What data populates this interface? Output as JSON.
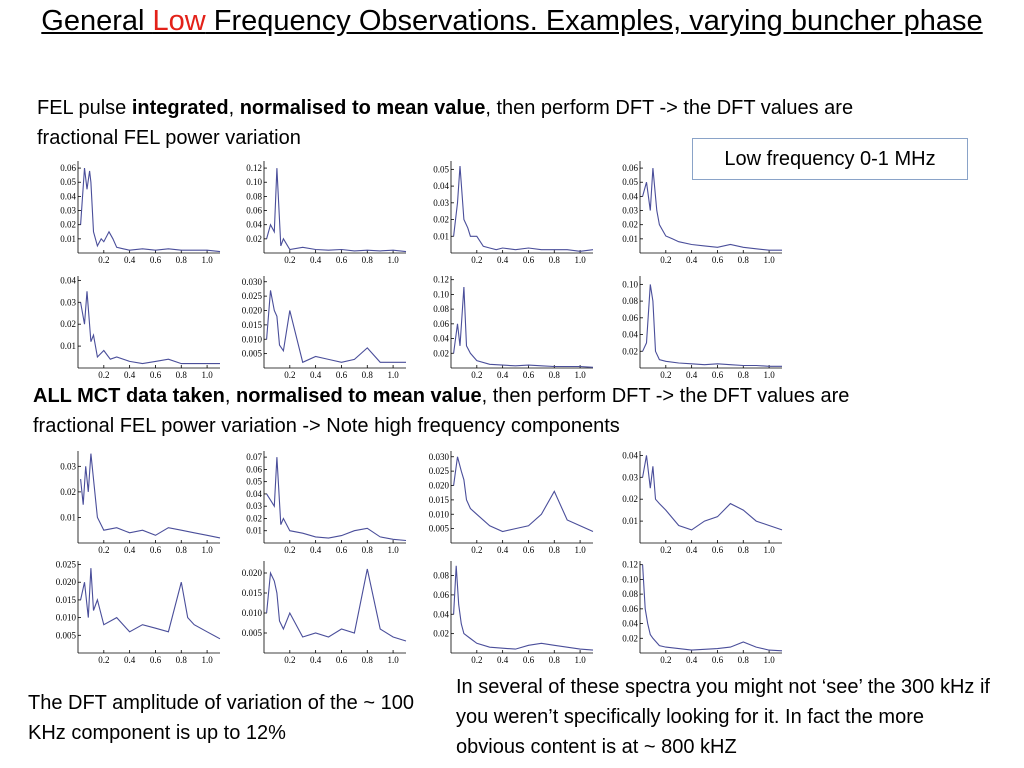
{
  "title": {
    "before": "General ",
    "accent": "Low",
    "after": " Frequency Observations. Examples, varying buncher phase",
    "accent_color": "#e32119"
  },
  "para1": {
    "t1": "FEL pulse ",
    "b1": "integrated",
    "t2": ", ",
    "b2": "normalised to mean value",
    "t3": ", then perform DFT -> the DFT values are fractional FEL power variation"
  },
  "box_label": "Low  frequency 0-1 MHz",
  "para2": {
    "b1": "ALL MCT data taken",
    "t1": ", ",
    "b2": "normalised to mean value",
    "t2": ", then perform DFT -> the DFT values are fractional FEL power variation -> Note high frequency components"
  },
  "note_left": "The DFT amplitude of variation of the ~ 100 KHz component is up to 12%",
  "note_right": "In several of these spectra you might not ‘see’ the 300 kHz if you weren’t specifically looking for it. In fact the more obvious  content is at ~ 800 kHZ",
  "colors": {
    "trace": "#4a4e9a",
    "box_border": "#8aa3c8"
  },
  "chart_data": [
    {
      "type": "line",
      "x": [
        0.02,
        0.05,
        0.07,
        0.09,
        0.1,
        0.12,
        0.15,
        0.18,
        0.2,
        0.24,
        0.27,
        0.3,
        0.35,
        0.4,
        0.5,
        0.6,
        0.7,
        0.8,
        0.9,
        1.0,
        1.1
      ],
      "y": [
        0.02,
        0.06,
        0.045,
        0.058,
        0.05,
        0.015,
        0.005,
        0.01,
        0.008,
        0.015,
        0.01,
        0.004,
        0.003,
        0.002,
        0.003,
        0.002,
        0.003,
        0.002,
        0.002,
        0.002,
        0.001
      ],
      "xticks": [
        "0.2",
        "0.4",
        "0.6",
        "0.8",
        "1.0"
      ],
      "yticks": [
        "0.01",
        "0.02",
        "0.03",
        "0.04",
        "0.05",
        "0.06"
      ],
      "ylim": [
        0,
        0.065
      ],
      "xlim": [
        0,
        1.1
      ]
    },
    {
      "type": "line",
      "x": [
        0.02,
        0.05,
        0.08,
        0.1,
        0.13,
        0.15,
        0.2,
        0.3,
        0.4,
        0.5,
        0.6,
        0.7,
        0.8,
        0.9,
        1.0,
        1.1
      ],
      "y": [
        0.02,
        0.04,
        0.03,
        0.12,
        0.01,
        0.02,
        0.005,
        0.008,
        0.005,
        0.004,
        0.005,
        0.003,
        0.004,
        0.003,
        0.004,
        0.002
      ],
      "xticks": [
        "0.2",
        "0.4",
        "0.6",
        "0.8",
        "1.0"
      ],
      "yticks": [
        "0.02",
        "0.04",
        "0.06",
        "0.08",
        "0.10",
        "0.12"
      ],
      "ylim": [
        0,
        0.13
      ],
      "xlim": [
        0,
        1.1
      ]
    },
    {
      "type": "line",
      "x": [
        0.02,
        0.05,
        0.07,
        0.1,
        0.13,
        0.15,
        0.2,
        0.25,
        0.3,
        0.35,
        0.4,
        0.5,
        0.6,
        0.7,
        0.8,
        0.9,
        1.0,
        1.1
      ],
      "y": [
        0.01,
        0.03,
        0.052,
        0.02,
        0.015,
        0.01,
        0.01,
        0.004,
        0.003,
        0.002,
        0.003,
        0.002,
        0.003,
        0.002,
        0.002,
        0.002,
        0.001,
        0.002
      ],
      "xticks": [
        "0.2",
        "0.4",
        "0.6",
        "0.8",
        "1.0"
      ],
      "yticks": [
        "0.01",
        "0.02",
        "0.03",
        "0.04",
        "0.05"
      ],
      "ylim": [
        0,
        0.055
      ],
      "xlim": [
        0,
        1.1
      ]
    },
    {
      "type": "line",
      "x": [
        0.02,
        0.05,
        0.08,
        0.1,
        0.13,
        0.15,
        0.2,
        0.25,
        0.3,
        0.4,
        0.5,
        0.6,
        0.7,
        0.8,
        0.9,
        1.0,
        1.1
      ],
      "y": [
        0.04,
        0.05,
        0.03,
        0.06,
        0.03,
        0.02,
        0.012,
        0.01,
        0.008,
        0.006,
        0.005,
        0.004,
        0.006,
        0.004,
        0.003,
        0.002,
        0.002
      ],
      "xticks": [
        "0.2",
        "0.4",
        "0.6",
        "0.8",
        "1.0"
      ],
      "yticks": [
        "0.01",
        "0.02",
        "0.03",
        "0.04",
        "0.05",
        "0.06"
      ],
      "ylim": [
        0,
        0.065
      ],
      "xlim": [
        0,
        1.1
      ]
    },
    {
      "type": "line",
      "x": [
        0.02,
        0.05,
        0.07,
        0.1,
        0.12,
        0.15,
        0.2,
        0.25,
        0.3,
        0.4,
        0.5,
        0.6,
        0.7,
        0.8,
        0.9,
        1.0,
        1.1
      ],
      "y": [
        0.03,
        0.02,
        0.035,
        0.012,
        0.015,
        0.005,
        0.008,
        0.004,
        0.005,
        0.003,
        0.002,
        0.003,
        0.004,
        0.002,
        0.002,
        0.002,
        0.002
      ],
      "xticks": [
        "0.2",
        "0.4",
        "0.6",
        "0.8",
        "1.0"
      ],
      "yticks": [
        "0.01",
        "0.02",
        "0.03",
        "0.04"
      ],
      "ylim": [
        0,
        0.042
      ],
      "xlim": [
        0,
        1.1
      ]
    },
    {
      "type": "line",
      "x": [
        0.02,
        0.05,
        0.08,
        0.1,
        0.12,
        0.15,
        0.2,
        0.3,
        0.4,
        0.5,
        0.6,
        0.7,
        0.8,
        0.9,
        1.0,
        1.1
      ],
      "y": [
        0.01,
        0.027,
        0.02,
        0.018,
        0.008,
        0.006,
        0.02,
        0.002,
        0.004,
        0.003,
        0.002,
        0.003,
        0.007,
        0.002,
        0.002,
        0.002
      ],
      "xticks": [
        "0.2",
        "0.4",
        "0.6",
        "0.8",
        "1.0"
      ],
      "yticks": [
        "0.005",
        "0.010",
        "0.015",
        "0.020",
        "0.025",
        "0.030"
      ],
      "ylim": [
        0,
        0.032
      ],
      "xlim": [
        0,
        1.1
      ]
    },
    {
      "type": "line",
      "x": [
        0.02,
        0.05,
        0.07,
        0.1,
        0.12,
        0.15,
        0.2,
        0.3,
        0.4,
        0.5,
        0.6,
        0.7,
        0.8,
        0.9,
        1.0,
        1.1
      ],
      "y": [
        0.02,
        0.06,
        0.03,
        0.11,
        0.03,
        0.02,
        0.01,
        0.005,
        0.004,
        0.003,
        0.004,
        0.003,
        0.002,
        0.002,
        0.002,
        0.001
      ],
      "xticks": [
        "0.2",
        "0.4",
        "0.6",
        "0.8",
        "1.0"
      ],
      "yticks": [
        "0.02",
        "0.04",
        "0.06",
        "0.08",
        "0.10",
        "0.12"
      ],
      "ylim": [
        0,
        0.125
      ],
      "xlim": [
        0,
        1.1
      ]
    },
    {
      "type": "line",
      "x": [
        0.02,
        0.05,
        0.08,
        0.1,
        0.12,
        0.15,
        0.2,
        0.3,
        0.4,
        0.5,
        0.6,
        0.7,
        0.8,
        0.9,
        1.0,
        1.1
      ],
      "y": [
        0.02,
        0.03,
        0.1,
        0.08,
        0.02,
        0.01,
        0.008,
        0.006,
        0.005,
        0.004,
        0.005,
        0.004,
        0.003,
        0.003,
        0.002,
        0.002
      ],
      "xticks": [
        "0.2",
        "0.4",
        "0.6",
        "0.8",
        "1.0"
      ],
      "yticks": [
        "0.02",
        "0.04",
        "0.06",
        "0.08",
        "0.10"
      ],
      "ylim": [
        0,
        0.11
      ],
      "xlim": [
        0,
        1.1
      ]
    },
    {
      "type": "line",
      "x": [
        0.02,
        0.04,
        0.06,
        0.08,
        0.1,
        0.15,
        0.2,
        0.3,
        0.4,
        0.5,
        0.6,
        0.7,
        0.8,
        0.9,
        1.0,
        1.1
      ],
      "y": [
        0.025,
        0.015,
        0.03,
        0.02,
        0.035,
        0.01,
        0.005,
        0.006,
        0.004,
        0.005,
        0.003,
        0.006,
        0.005,
        0.004,
        0.003,
        0.002
      ],
      "xticks": [
        "0.2",
        "0.4",
        "0.6",
        "0.8",
        "1.0"
      ],
      "yticks": [
        "0.01",
        "0.02",
        "0.03"
      ],
      "ylim": [
        0,
        0.036
      ],
      "xlim": [
        0,
        1.1
      ]
    },
    {
      "type": "line",
      "x": [
        0.02,
        0.05,
        0.08,
        0.1,
        0.13,
        0.15,
        0.2,
        0.3,
        0.4,
        0.5,
        0.6,
        0.7,
        0.8,
        0.9,
        1.0,
        1.1
      ],
      "y": [
        0.04,
        0.035,
        0.03,
        0.07,
        0.015,
        0.02,
        0.01,
        0.008,
        0.005,
        0.004,
        0.006,
        0.01,
        0.012,
        0.005,
        0.003,
        0.002
      ],
      "xticks": [
        "0.2",
        "0.4",
        "0.6",
        "0.8",
        "1.0"
      ],
      "yticks": [
        "0.01",
        "0.02",
        "0.03",
        "0.04",
        "0.05",
        "0.06",
        "0.07"
      ],
      "ylim": [
        0,
        0.075
      ],
      "xlim": [
        0,
        1.1
      ]
    },
    {
      "type": "line",
      "x": [
        0.02,
        0.05,
        0.08,
        0.1,
        0.12,
        0.15,
        0.2,
        0.3,
        0.4,
        0.5,
        0.6,
        0.7,
        0.8,
        0.9,
        1.0,
        1.1
      ],
      "y": [
        0.02,
        0.03,
        0.025,
        0.022,
        0.015,
        0.012,
        0.01,
        0.006,
        0.004,
        0.005,
        0.006,
        0.01,
        0.018,
        0.008,
        0.006,
        0.004
      ],
      "xticks": [
        "0.2",
        "0.4",
        "0.6",
        "0.8",
        "1.0"
      ],
      "yticks": [
        "0.005",
        "0.010",
        "0.015",
        "0.020",
        "0.025",
        "0.030"
      ],
      "ylim": [
        0,
        0.032
      ],
      "xlim": [
        0,
        1.1
      ]
    },
    {
      "type": "line",
      "x": [
        0.02,
        0.05,
        0.08,
        0.1,
        0.12,
        0.15,
        0.2,
        0.3,
        0.4,
        0.5,
        0.6,
        0.7,
        0.8,
        0.9,
        1.0,
        1.1
      ],
      "y": [
        0.03,
        0.04,
        0.025,
        0.035,
        0.02,
        0.018,
        0.015,
        0.008,
        0.006,
        0.01,
        0.012,
        0.018,
        0.015,
        0.01,
        0.008,
        0.006
      ],
      "xticks": [
        "0.2",
        "0.4",
        "0.6",
        "0.8",
        "1.0"
      ],
      "yticks": [
        "0.01",
        "0.02",
        "0.03",
        "0.04"
      ],
      "ylim": [
        0,
        0.042
      ],
      "xlim": [
        0,
        1.1
      ]
    },
    {
      "type": "line",
      "x": [
        0.02,
        0.05,
        0.08,
        0.1,
        0.12,
        0.15,
        0.2,
        0.3,
        0.4,
        0.5,
        0.6,
        0.7,
        0.8,
        0.85,
        0.9,
        1.0,
        1.1
      ],
      "y": [
        0.015,
        0.02,
        0.01,
        0.024,
        0.012,
        0.015,
        0.008,
        0.01,
        0.006,
        0.008,
        0.007,
        0.006,
        0.02,
        0.01,
        0.008,
        0.006,
        0.004
      ],
      "xticks": [
        "0.2",
        "0.4",
        "0.6",
        "0.8",
        "1.0"
      ],
      "yticks": [
        "0.005",
        "0.010",
        "0.015",
        "0.020",
        "0.025"
      ],
      "ylim": [
        0,
        0.026
      ],
      "xlim": [
        0,
        1.1
      ]
    },
    {
      "type": "line",
      "x": [
        0.02,
        0.05,
        0.08,
        0.1,
        0.12,
        0.15,
        0.2,
        0.3,
        0.4,
        0.5,
        0.6,
        0.7,
        0.8,
        0.9,
        1.0,
        1.1
      ],
      "y": [
        0.01,
        0.02,
        0.018,
        0.015,
        0.008,
        0.006,
        0.01,
        0.004,
        0.005,
        0.004,
        0.006,
        0.005,
        0.021,
        0.006,
        0.004,
        0.003
      ],
      "xticks": [
        "0.2",
        "0.4",
        "0.6",
        "0.8",
        "1.0"
      ],
      "yticks": [
        "0.005",
        "0.010",
        "0.015",
        "0.020"
      ],
      "ylim": [
        0,
        0.023
      ],
      "xlim": [
        0,
        1.1
      ]
    },
    {
      "type": "line",
      "x": [
        0.02,
        0.04,
        0.06,
        0.08,
        0.1,
        0.15,
        0.2,
        0.3,
        0.4,
        0.5,
        0.6,
        0.7,
        0.8,
        0.9,
        1.0,
        1.1
      ],
      "y": [
        0.04,
        0.09,
        0.05,
        0.03,
        0.02,
        0.015,
        0.01,
        0.006,
        0.005,
        0.004,
        0.008,
        0.01,
        0.008,
        0.006,
        0.004,
        0.003
      ],
      "xticks": [
        "0.2",
        "0.4",
        "0.6",
        "0.8",
        "1.0"
      ],
      "yticks": [
        "0.02",
        "0.04",
        "0.06",
        "0.08"
      ],
      "ylim": [
        0,
        0.095
      ],
      "xlim": [
        0,
        1.1
      ]
    },
    {
      "type": "line",
      "x": [
        0.02,
        0.04,
        0.06,
        0.08,
        0.1,
        0.15,
        0.2,
        0.3,
        0.4,
        0.5,
        0.6,
        0.7,
        0.8,
        0.9,
        1.0,
        1.1
      ],
      "y": [
        0.12,
        0.06,
        0.04,
        0.025,
        0.02,
        0.01,
        0.008,
        0.006,
        0.004,
        0.005,
        0.006,
        0.008,
        0.015,
        0.008,
        0.004,
        0.003
      ],
      "xticks": [
        "0.2",
        "0.4",
        "0.6",
        "0.8",
        "1.0"
      ],
      "yticks": [
        "0.02",
        "0.04",
        "0.06",
        "0.08",
        "0.10",
        "0.12"
      ],
      "ylim": [
        0,
        0.125
      ],
      "xlim": [
        0,
        1.1
      ]
    }
  ]
}
